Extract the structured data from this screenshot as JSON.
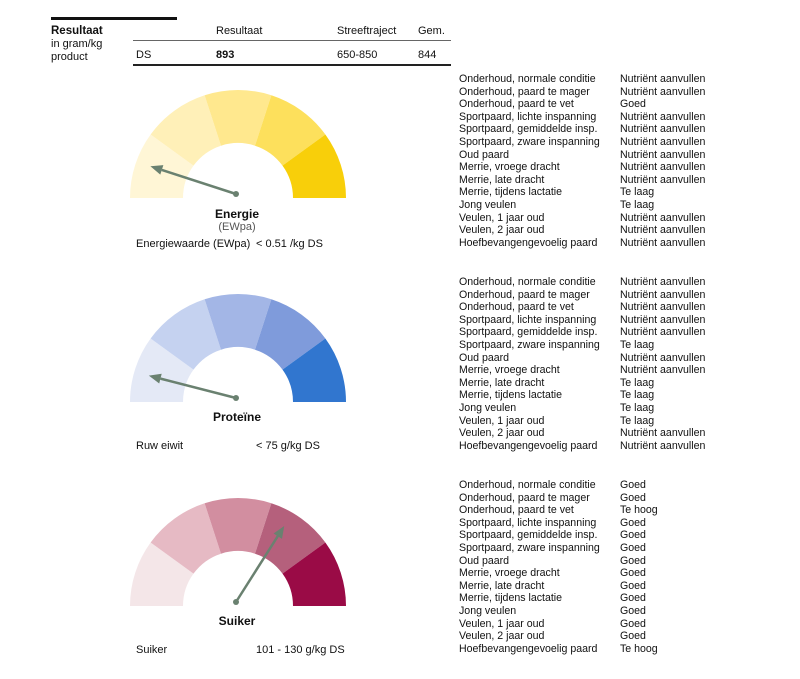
{
  "header": {
    "title": "Resultaat",
    "subtitle_lines": [
      "in gram/kg",
      "product"
    ],
    "col_result": "Resultaat",
    "col_range": "Streeftraject",
    "col_avg": "Gem."
  },
  "summary_row": {
    "label": "DS",
    "result": "893",
    "range": "650-850",
    "avg": "844"
  },
  "colors": {
    "energie": [
      "#fff6d6",
      "#fff0b8",
      "#ffe88e",
      "#fde05c",
      "#f8cf0a"
    ],
    "proteine": [
      "#e4e9f6",
      "#c5d2f0",
      "#a3b6e6",
      "#7f9bdb",
      "#3176cf"
    ],
    "suiker": [
      "#f4e6e8",
      "#e6bac4",
      "#d28ea0",
      "#b5607c",
      "#9a0b46"
    ],
    "needle": "#6a8170"
  },
  "gauges": [
    {
      "id": "energie",
      "label": "Energie",
      "sublabel": "(EWpa)",
      "needle_position": 0.1,
      "metric_name": "Energiewaarde (EWpa)",
      "metric_value": "< 0.51 /kg DS",
      "items": [
        {
          "name": "Onderhoud, normale conditie",
          "value": "Nutriënt aanvullen"
        },
        {
          "name": "Onderhoud, paard te mager",
          "value": "Nutriënt aanvullen"
        },
        {
          "name": "Onderhoud, paard te vet",
          "value": "Goed"
        },
        {
          "name": "Sportpaard, lichte inspanning",
          "value": "Nutriënt aanvullen"
        },
        {
          "name": "Sportpaard, gemiddelde insp.",
          "value": "Nutriënt aanvullen"
        },
        {
          "name": "Sportpaard, zware inspanning",
          "value": "Nutriënt aanvullen"
        },
        {
          "name": "Oud paard",
          "value": "Nutriënt aanvullen"
        },
        {
          "name": "Merrie, vroege dracht",
          "value": "Nutriënt aanvullen"
        },
        {
          "name": "Merrie, late dracht",
          "value": "Nutriënt aanvullen"
        },
        {
          "name": "Merrie, tijdens lactatie",
          "value": "Te laag"
        },
        {
          "name": "Jong veulen",
          "value": "Te laag"
        },
        {
          "name": "Veulen, 1 jaar oud",
          "value": "Nutriënt aanvullen"
        },
        {
          "name": "Veulen, 2 jaar oud",
          "value": "Nutriënt aanvullen"
        },
        {
          "name": "Hoefbevangengevoelig paard",
          "value": "Nutriënt aanvullen"
        }
      ]
    },
    {
      "id": "proteine",
      "label": "Proteïne",
      "sublabel": "",
      "needle_position": 0.08,
      "metric_name": "Ruw eiwit",
      "metric_value": "< 75 g/kg DS",
      "items": [
        {
          "name": "Onderhoud, normale conditie",
          "value": "Nutriënt aanvullen"
        },
        {
          "name": "Onderhoud, paard te mager",
          "value": "Nutriënt aanvullen"
        },
        {
          "name": "Onderhoud, paard te vet",
          "value": "Nutriënt aanvullen"
        },
        {
          "name": "Sportpaard, lichte inspanning",
          "value": "Nutriënt aanvullen"
        },
        {
          "name": "Sportpaard, gemiddelde insp.",
          "value": "Nutriënt aanvullen"
        },
        {
          "name": "Sportpaard, zware inspanning",
          "value": "Te laag"
        },
        {
          "name": "Oud paard",
          "value": "Nutriënt aanvullen"
        },
        {
          "name": "Merrie, vroege dracht",
          "value": "Nutriënt aanvullen"
        },
        {
          "name": "Merrie, late dracht",
          "value": "Te laag"
        },
        {
          "name": "Merrie, tijdens lactatie",
          "value": "Te laag"
        },
        {
          "name": "Jong veulen",
          "value": "Te laag"
        },
        {
          "name": "Veulen, 1 jaar oud",
          "value": "Te laag"
        },
        {
          "name": "Veulen, 2 jaar oud",
          "value": "Nutriënt aanvullen"
        },
        {
          "name": "Hoefbevangengevoelig paard",
          "value": "Nutriënt aanvullen"
        }
      ]
    },
    {
      "id": "suiker",
      "label": "Suiker",
      "sublabel": "",
      "needle_position": 0.68,
      "metric_name": "Suiker",
      "metric_value": "101 - 130 g/kg DS",
      "items": [
        {
          "name": "Onderhoud, normale conditie",
          "value": "Goed"
        },
        {
          "name": "Onderhoud, paard te mager",
          "value": "Goed"
        },
        {
          "name": "Onderhoud, paard te vet",
          "value": "Te hoog"
        },
        {
          "name": "Sportpaard, lichte inspanning",
          "value": "Goed"
        },
        {
          "name": "Sportpaard, gemiddelde insp.",
          "value": "Goed"
        },
        {
          "name": "Sportpaard, zware inspanning",
          "value": "Goed"
        },
        {
          "name": "Oud paard",
          "value": "Goed"
        },
        {
          "name": "Merrie, vroege dracht",
          "value": "Goed"
        },
        {
          "name": "Merrie, late dracht",
          "value": "Goed"
        },
        {
          "name": "Merrie, tijdens lactatie",
          "value": "Goed"
        },
        {
          "name": "Jong veulen",
          "value": "Goed"
        },
        {
          "name": "Veulen, 1 jaar oud",
          "value": "Goed"
        },
        {
          "name": "Veulen, 2 jaar oud",
          "value": "Goed"
        },
        {
          "name": "Hoefbevangengevoelig paard",
          "value": "Te hoog"
        }
      ]
    }
  ]
}
